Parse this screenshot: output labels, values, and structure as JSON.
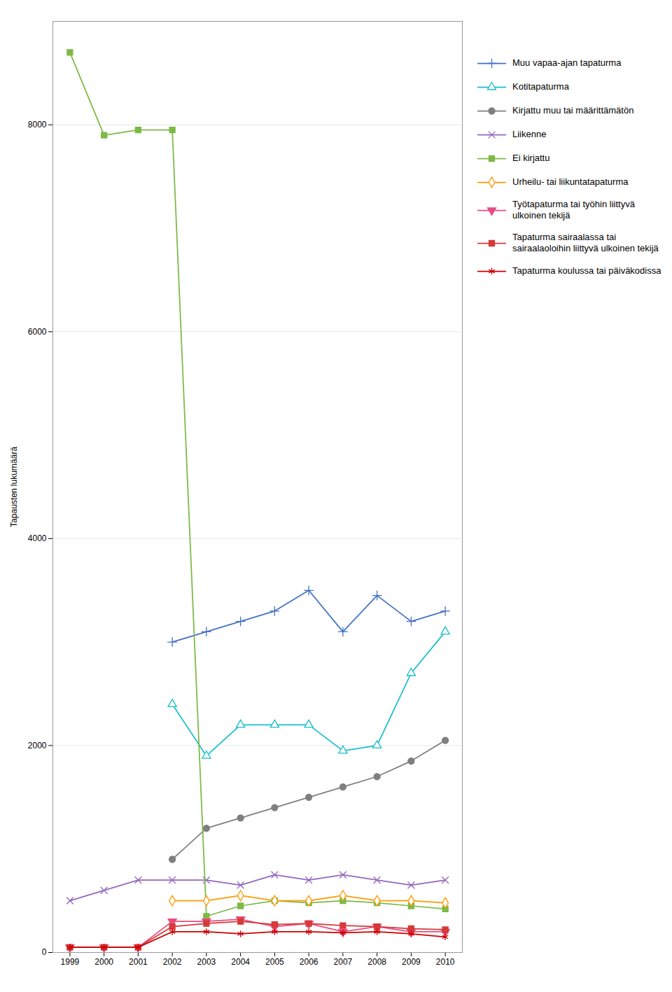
{
  "chart_data": {
    "type": "line",
    "x": [
      1999,
      2000,
      2001,
      2002,
      2003,
      2004,
      2005,
      2006,
      2007,
      2008,
      2009,
      2010
    ],
    "series": [
      {
        "name": "Muu vapaa-ajan tapaturma",
        "color": "#4472C4",
        "marker": "plus",
        "values": [
          null,
          null,
          null,
          3000,
          3100,
          3200,
          3300,
          3500,
          3100,
          3450,
          3200,
          3300
        ]
      },
      {
        "name": "Kotitapaturma",
        "color": "#17BECF",
        "marker": "triangle_up",
        "values": [
          null,
          null,
          null,
          2400,
          1900,
          2200,
          2200,
          2200,
          1950,
          2000,
          2700,
          3100
        ]
      },
      {
        "name": "Kirjattu muu tai määrittämätön",
        "color": "#7F7F7F",
        "marker": "circle",
        "values": [
          null,
          null,
          null,
          900,
          1200,
          1300,
          1400,
          1500,
          1600,
          1700,
          1850,
          2050
        ]
      },
      {
        "name": "Liikenne",
        "color": "#9467BD",
        "marker": "x",
        "values": [
          500,
          600,
          700,
          700,
          700,
          650,
          750,
          700,
          750,
          700,
          650,
          700
        ]
      },
      {
        "name": "Ei kirjattu",
        "color": "#7DB944",
        "marker": "square",
        "values": [
          8700,
          7900,
          7950,
          7950,
          350,
          450,
          500,
          480,
          500,
          480,
          450,
          420
        ]
      },
      {
        "name": "Urheilu- tai liikuntatapaturma",
        "color": "#FF9900",
        "marker": "diamond",
        "values": [
          null,
          null,
          null,
          500,
          500,
          550,
          500,
          500,
          550,
          500,
          500,
          480
        ]
      },
      {
        "name": "Työtapaturma tai työhin liittyvä ulkoinen tekijä",
        "color": "#E84C7F",
        "marker": "triangle_down",
        "values": [
          50,
          50,
          50,
          300,
          300,
          320,
          250,
          280,
          200,
          250,
          200,
          200
        ]
      },
      {
        "name": "Tapaturma sairaalassa tai sairaalaoloihin liittyvä ulkoinen tekijä",
        "color": "#D63A3A",
        "marker": "square",
        "values": [
          50,
          50,
          50,
          250,
          280,
          300,
          270,
          280,
          260,
          250,
          230,
          220
        ]
      },
      {
        "name": "Tapaturma koulussa tai päiväkodissa",
        "color": "#CC0000",
        "marker": "asterisk",
        "values": [
          50,
          50,
          50,
          200,
          200,
          180,
          200,
          200,
          190,
          200,
          180,
          150
        ]
      }
    ],
    "ylabel": "Tapausten lukumäärä",
    "xlim": [
      1998.5,
      2010.5
    ],
    "xticks": [
      1999,
      2000,
      2001,
      2002,
      2003,
      2004,
      2005,
      2006,
      2007,
      2008,
      2009,
      2010
    ],
    "ylim": [
      0,
      9000
    ],
    "yticks": [
      0,
      2000,
      4000,
      6000,
      8000
    ],
    "grid": true,
    "legend": "right"
  }
}
